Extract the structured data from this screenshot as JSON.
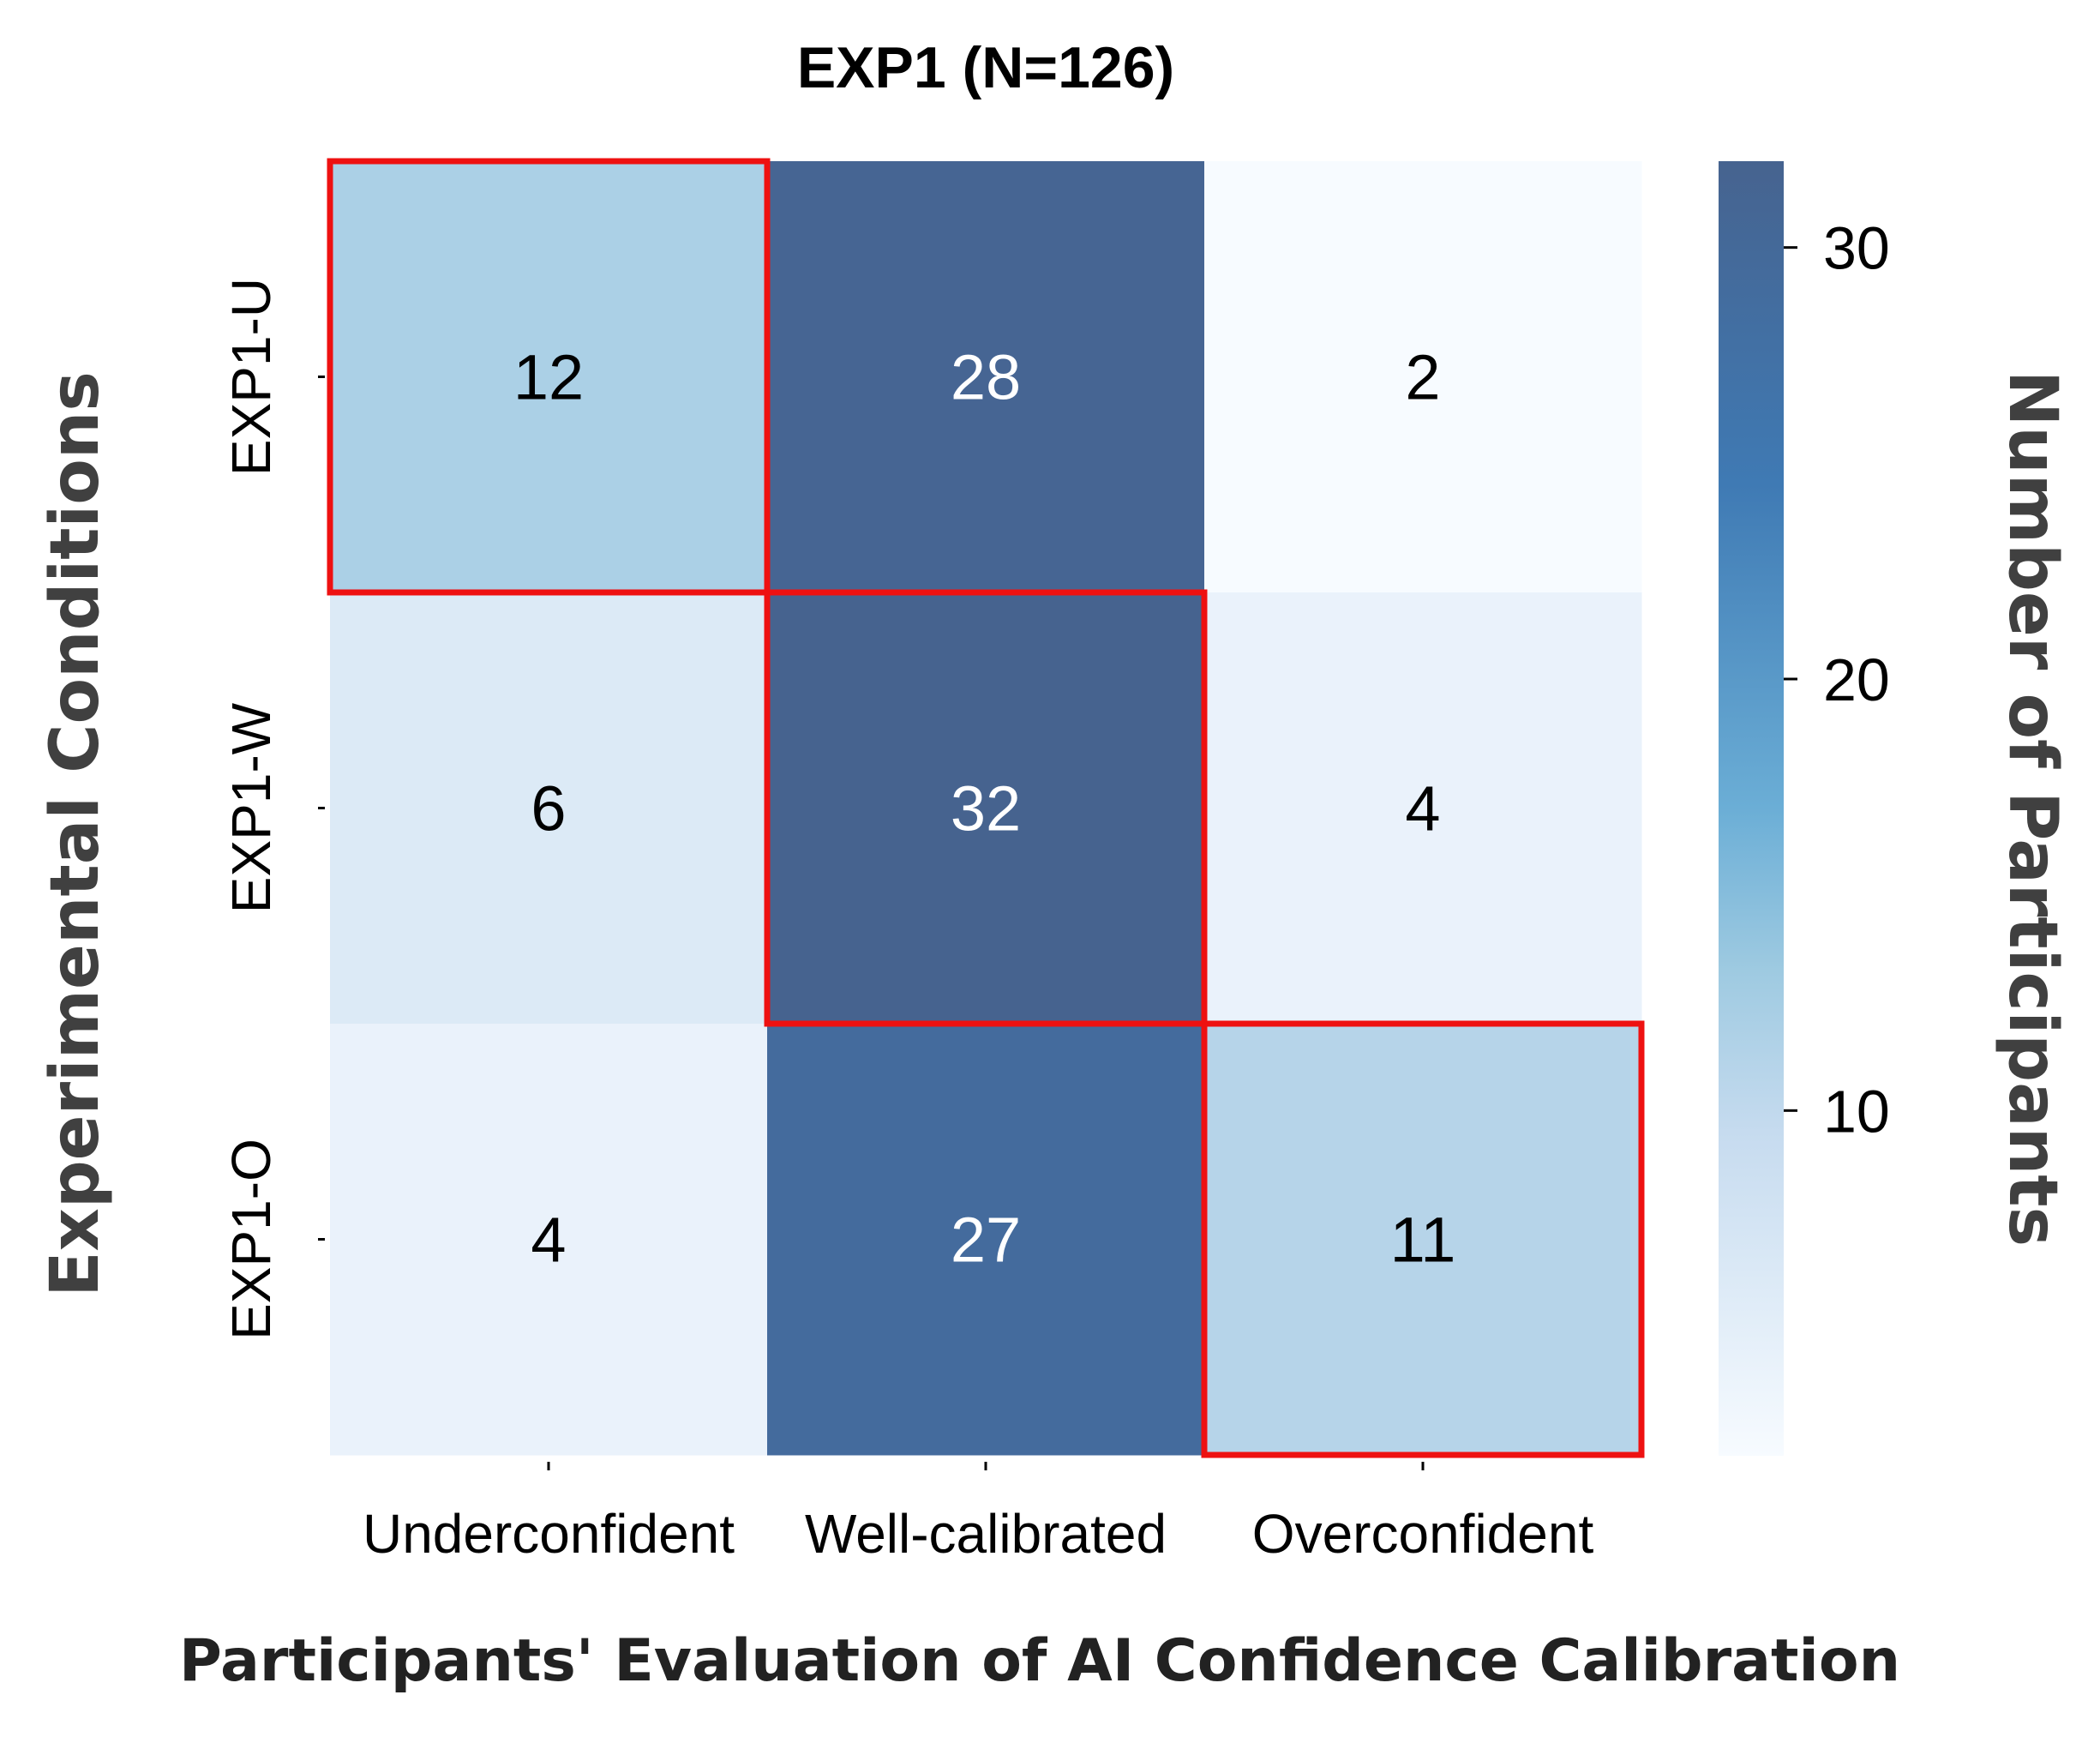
{
  "chart_data": {
    "type": "heatmap",
    "title": "EXP1 (N=126)",
    "xlabel": "Participants' Evaluation of AI Confidence Calibration",
    "ylabel": "Experimental Conditions",
    "colorbar_label": "Number of Participants",
    "x_categories": [
      "Underconfident",
      "Well-calibrated",
      "Overconfident"
    ],
    "y_categories": [
      "EXP1-U",
      "EXP1-W",
      "EXP1-O"
    ],
    "values": [
      [
        12,
        28,
        2
      ],
      [
        6,
        32,
        4
      ],
      [
        4,
        27,
        11
      ]
    ],
    "colorbar_ticks": [
      10,
      20,
      30
    ],
    "colorbar_range": [
      2,
      32
    ],
    "colormap": "Blues",
    "highlighted_cells": [
      [
        0,
        0
      ],
      [
        1,
        1
      ],
      [
        2,
        2
      ]
    ],
    "highlight_color": "#ee1111"
  }
}
